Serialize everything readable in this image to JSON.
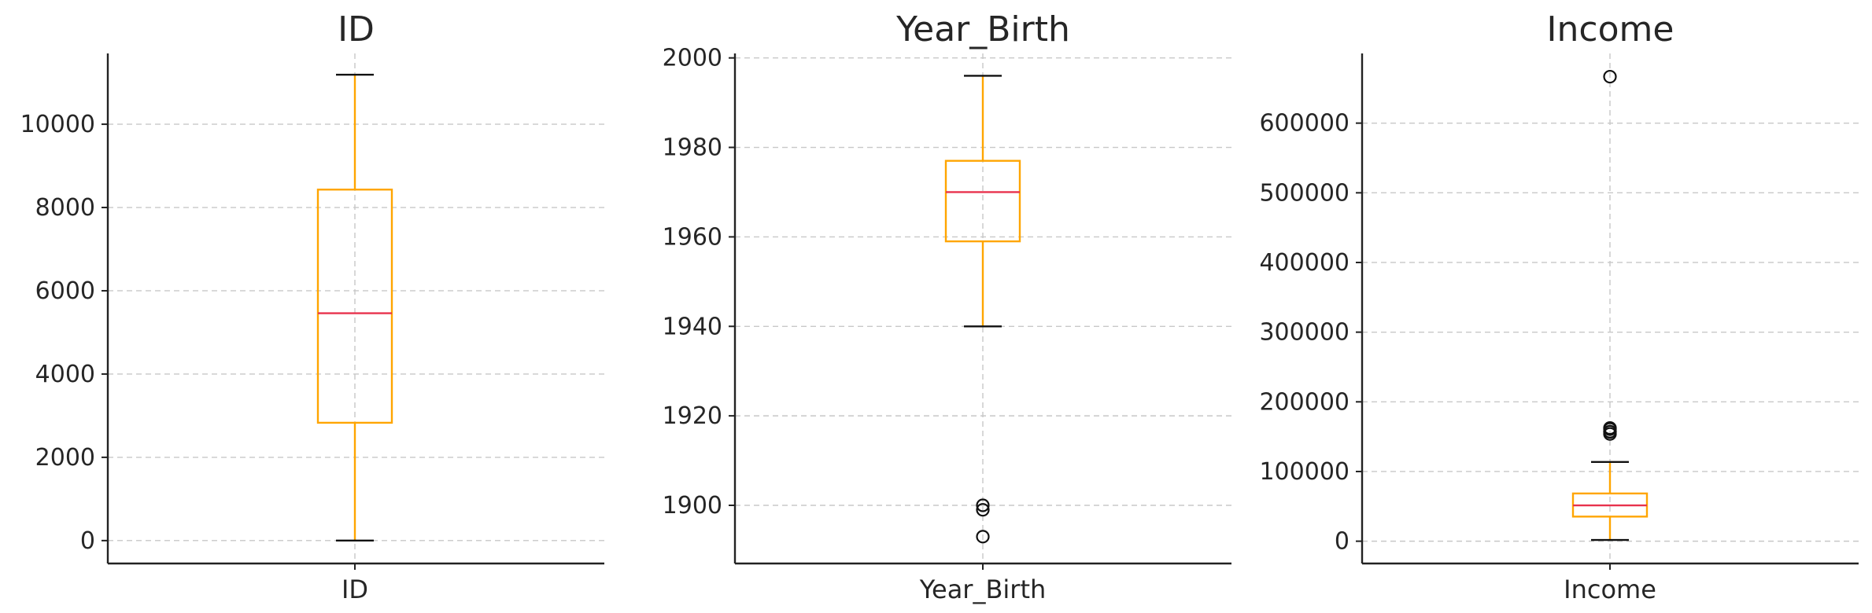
{
  "colors": {
    "box": "#ffa500",
    "whisker": "#ffa500",
    "median": "#e8324d",
    "cap": "#111111",
    "flier": "#111111",
    "grid": "#c8c8c8",
    "axis": "#222222",
    "text": "#262626"
  },
  "chart_data": [
    {
      "type": "boxplot",
      "title": "ID",
      "category": "ID",
      "ylim": [
        -550,
        11700
      ],
      "yticks": [
        0,
        2000,
        4000,
        6000,
        8000,
        10000
      ],
      "ytick_labels": [
        "0",
        "2000",
        "4000",
        "6000",
        "8000",
        "10000"
      ],
      "grid": true,
      "whisker_low": 0,
      "q1": 2830,
      "median": 5460,
      "q3": 8430,
      "whisker_high": 11190,
      "fliers": []
    },
    {
      "type": "boxplot",
      "title": "Year_Birth",
      "category": "Year_Birth",
      "ylim": [
        1887,
        2001
      ],
      "yticks": [
        1900,
        1920,
        1940,
        1960,
        1980,
        2000
      ],
      "ytick_labels": [
        "1900",
        "1920",
        "1940",
        "1960",
        "1980",
        "2000"
      ],
      "grid": true,
      "whisker_low": 1940,
      "q1": 1959,
      "median": 1970,
      "q3": 1977,
      "whisker_high": 1996,
      "fliers": [
        1893,
        1899,
        1900
      ]
    },
    {
      "type": "boxplot",
      "title": "Income",
      "category": "Income",
      "ylim": [
        -32000,
        700000
      ],
      "yticks": [
        0,
        100000,
        200000,
        300000,
        400000,
        500000,
        600000
      ],
      "ytick_labels": [
        "0",
        "100000",
        "200000",
        "300000",
        "400000",
        "500000",
        "600000"
      ],
      "grid": true,
      "whisker_low": 1730,
      "q1": 35300,
      "median": 51400,
      "q3": 68500,
      "whisker_high": 113700,
      "fliers": [
        153900,
        156900,
        157200,
        160800,
        162400,
        666666
      ]
    }
  ]
}
